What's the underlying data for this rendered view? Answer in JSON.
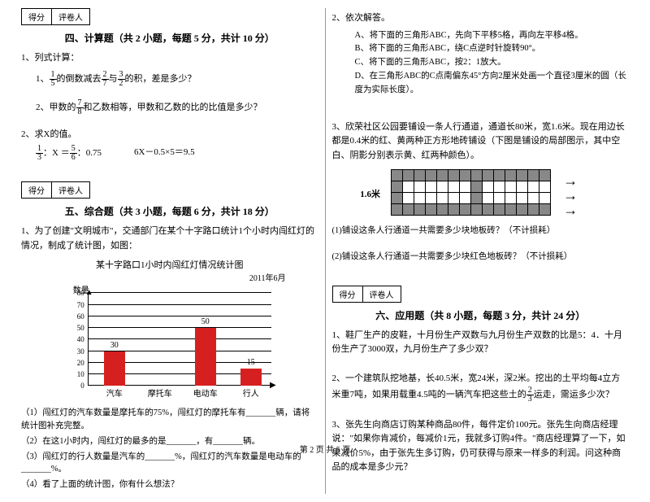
{
  "scoreBox": {
    "c1": "得分",
    "c2": "评卷人"
  },
  "left": {
    "s4": {
      "title": "四、计算题（共 2 小题，每题 5 分，共计 10 分）",
      "q1": {
        "label": "1、列式计算：",
        "a": {
          "pre": "1、",
          "f1n": "1",
          "f1d": "5",
          "mid1": "的倒数减去",
          "f2n": "2",
          "f2d": "7",
          "mid2": "与",
          "f3n": "3",
          "f3d": "2",
          "tail": "的积，差是多少？"
        },
        "b": {
          "pre": "2、甲数的",
          "f1n": "7",
          "f1d": "8",
          "tail": "和乙数相等，甲数和乙数的比的比值是多少？"
        }
      },
      "q2": {
        "label": "2、求X的值。",
        "a": {
          "f1n": "1",
          "f1d": "3",
          "mid": "：X ＝",
          "f2n": "5",
          "f2d": "6",
          "tail": "：0.75"
        },
        "b": "6X－0.5×5＝9.5"
      }
    },
    "s5": {
      "title": "五、综合题（共 3 小题，每题 6 分，共计 18 分）",
      "q1": "1、为了创建\"文明城市\"，交通部门在某个十字路口统计1个小时内闯红灯的情况，制成了统计图，如图：",
      "chart": {
        "title": "某十字路口1小时内闯红灯情况统计图",
        "date": "2011年6月",
        "yLabel": "数量",
        "yMax": 80,
        "yStep": 10,
        "categories": [
          "汽车",
          "摩托车",
          "电动车",
          "行人"
        ],
        "values": [
          30,
          null,
          50,
          15
        ],
        "labels": [
          "30",
          "",
          "50",
          "15"
        ],
        "barColor": "#d62020"
      },
      "sub": {
        "a": "（1）闯红灯的汽车数量是摩托车的75%，闯红灯的摩托车有_______辆，请将统计图补充完整。",
        "b": "（2）在这1小时内，闯红灯的最多的是_______，有_______辆。",
        "c": "（3）闯红灯的行人数量是汽车的_______%，闯红灯的汽车数量是电动车的_______%。",
        "d": "（4）看了上面的统计图，你有什么想法？"
      }
    }
  },
  "right": {
    "q2": {
      "label": "2、依次解答。",
      "a": "A、将下面的三角形ABC，先向下平移5格，再向左平移4格。",
      "b": "B、将下面的三角形ABC，绕C点逆时针旋转90°。",
      "c": "C、将下面的三角形ABC，按2：1放大。",
      "d": "D、在三角形ABC的C点南偏东45°方向2厘米处画一个直径3厘米的圆（长度为实际长度）。"
    },
    "q3": {
      "text": "3、欣荣社区公园要铺设一条人行通道，通道长80米，宽1.6米。现在用边长都是0.4米的红、黄两种正方形地砖铺设（下图是铺设的局部图示，其中空白、阴影分别表示黄、红两种颜色）。",
      "label": "1.6米",
      "a": "(1)铺设这条人行通道一共需要多少块地板砖？（不计损耗）",
      "b": "(2)铺设这条人行通道一共需要多少块红色地板砖？（不计损耗）"
    },
    "s6": {
      "title": "六、应用题（共 8 小题，每题 3 分，共计 24 分）",
      "q1": "1、鞋厂生产的皮鞋，十月份生产双数与九月份生产双数的比是5：4．十月份生产了3000双，九月份生产了多少双？",
      "q2": {
        "pre": "2、一个建筑队挖地基，长40.5米，宽24米，深2米。挖出的土平均每4立方米重7吨，如果用载重4.5吨的一辆汽车把这些土的",
        "fn": "2",
        "fd": "3",
        "tail": "运走，需运多少次？"
      },
      "q3": "3、张先生向商店订购某种商品80件，每件定价100元。张先生向商店经理说：\"如果你肯减价，每减价1元，我就多订购4件。\"商店经理算了一下，如果减价5%，由于张先生多订购，仍可获得与原来一样多的利润。问这种商品的成本是多少元？"
    }
  },
  "footer": "第 2 页 共 5 页"
}
